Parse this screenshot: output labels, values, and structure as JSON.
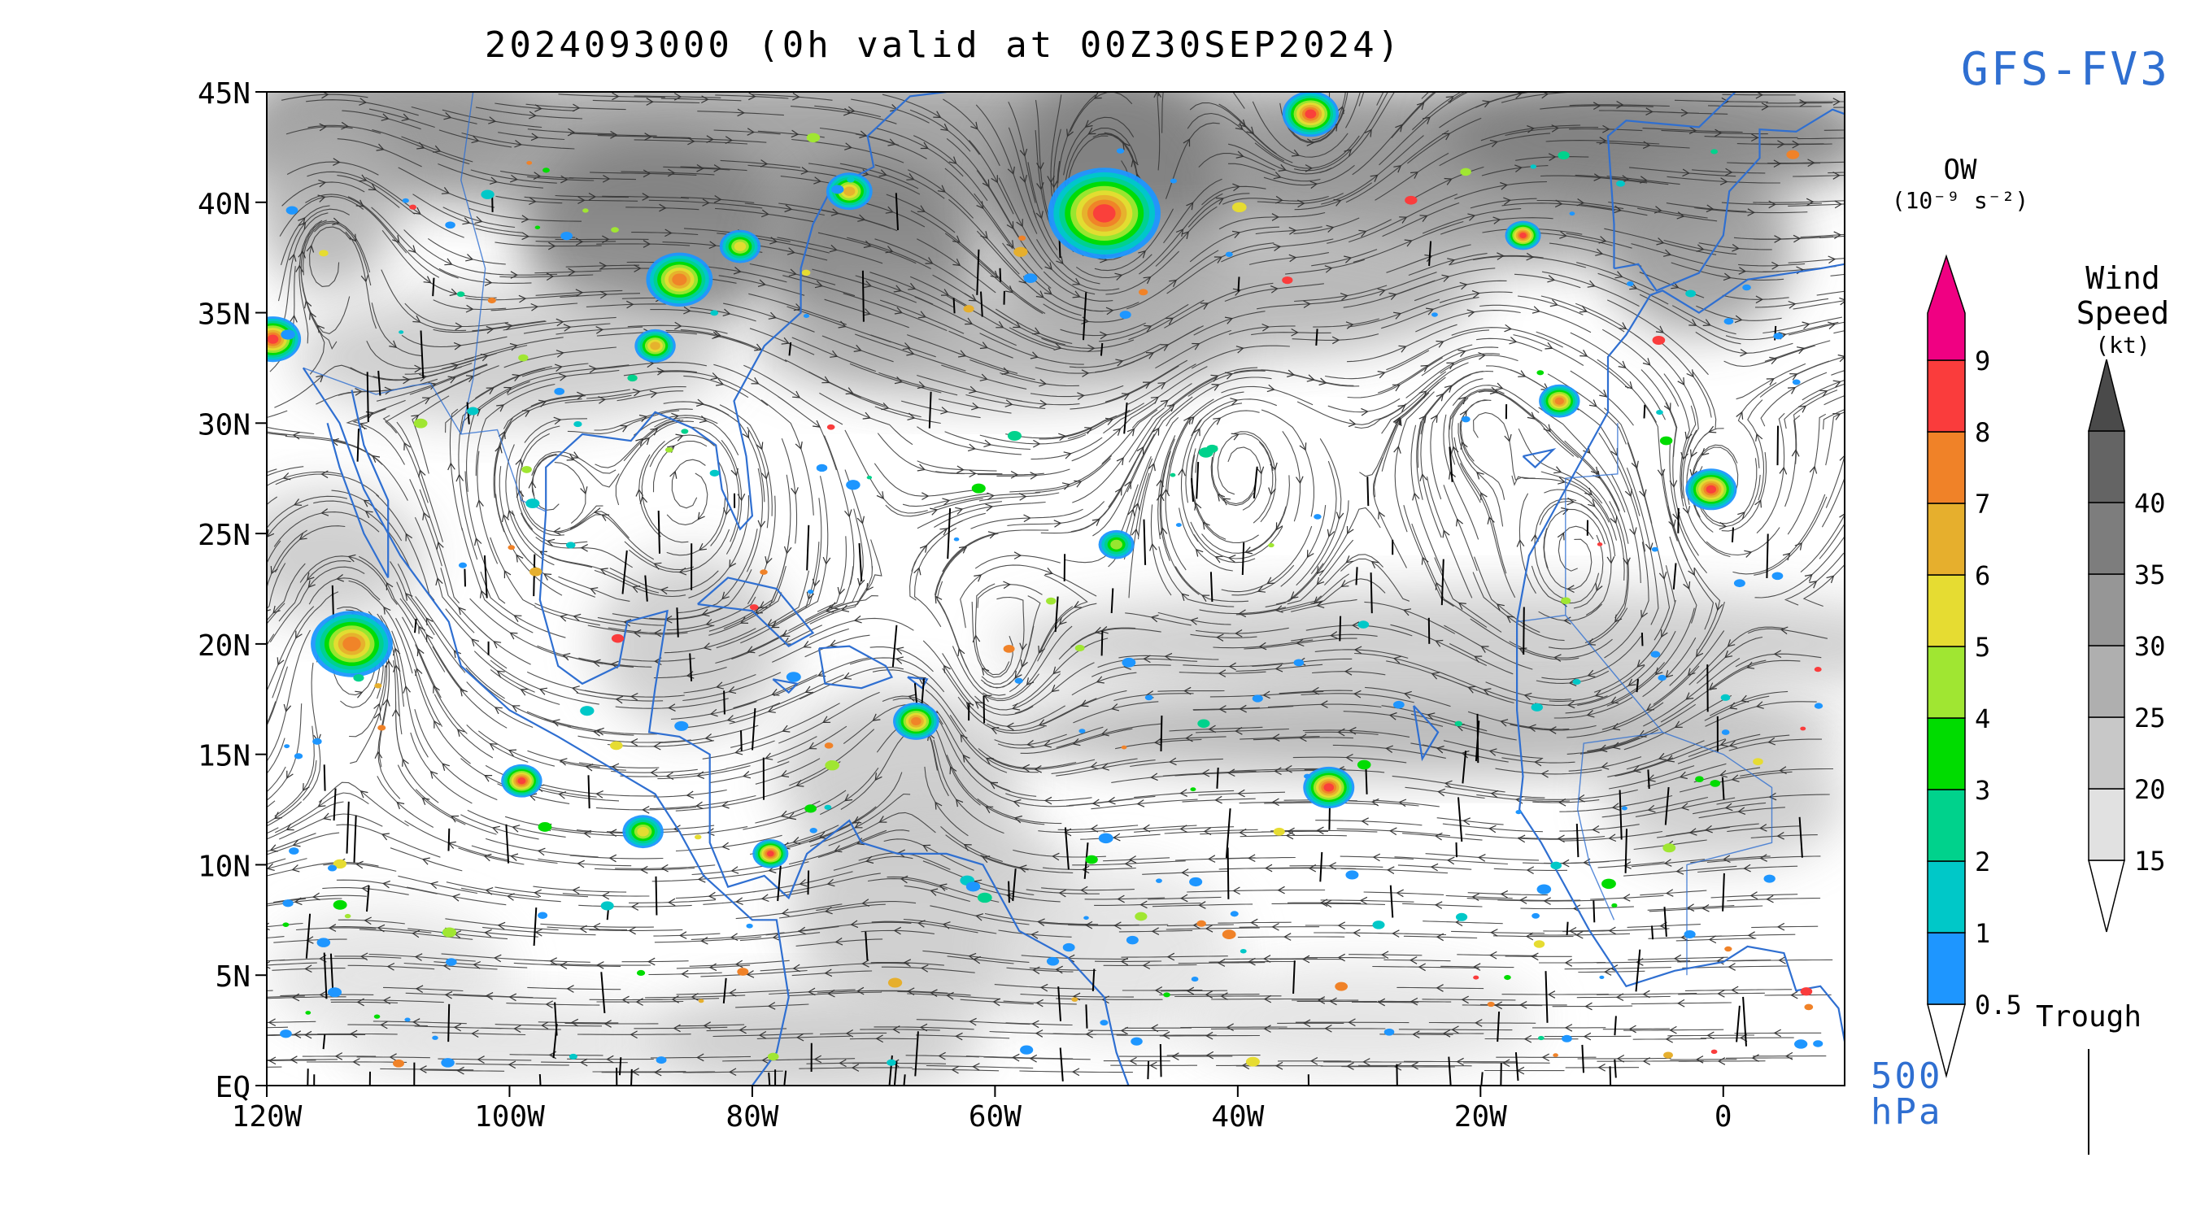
{
  "title": "2024093000 (0h valid at 00Z30SEP2024)",
  "model": "GFS-FV3",
  "level": {
    "value": "500",
    "unit": "hPa"
  },
  "map": {
    "lon_range": [
      -120,
      10
    ],
    "lat_range": [
      0,
      45
    ],
    "lat_ticks": [
      {
        "value": 45,
        "label": "45N"
      },
      {
        "value": 40,
        "label": "40N"
      },
      {
        "value": 35,
        "label": "35N"
      },
      {
        "value": 30,
        "label": "30N"
      },
      {
        "value": 25,
        "label": "25N"
      },
      {
        "value": 20,
        "label": "20N"
      },
      {
        "value": 15,
        "label": "15N"
      },
      {
        "value": 10,
        "label": "10N"
      },
      {
        "value": 5,
        "label": "5N"
      },
      {
        "value": 0,
        "label": "EQ"
      }
    ],
    "lon_ticks": [
      {
        "value": -120,
        "label": "120W"
      },
      {
        "value": -100,
        "label": "100W"
      },
      {
        "value": -80,
        "label": "80W"
      },
      {
        "value": -60,
        "label": "60W"
      },
      {
        "value": -40,
        "label": "40W"
      },
      {
        "value": -20,
        "label": "20W"
      },
      {
        "value": 0,
        "label": "0"
      }
    ],
    "coast_color": "#2f6fd1",
    "streamline_color": "#333333",
    "trough_color": "#000000"
  },
  "ow_legend": {
    "title": "OW",
    "unit_label": "(10⁻⁹ s⁻²)",
    "bins": [
      {
        "label": "0.5",
        "color": "#1e96ff"
      },
      {
        "label": "1",
        "color": "#00c8c8"
      },
      {
        "label": "2",
        "color": "#00d28c"
      },
      {
        "label": "3",
        "color": "#00dc00"
      },
      {
        "label": "4",
        "color": "#a0e632"
      },
      {
        "label": "5",
        "color": "#e6dc32"
      },
      {
        "label": "6",
        "color": "#e6af2d"
      },
      {
        "label": "7",
        "color": "#f08228"
      },
      {
        "label": "8",
        "color": "#fa3c3c"
      },
      {
        "label": "9",
        "color": "#f00082"
      }
    ]
  },
  "wind_legend": {
    "title_line1": "Wind",
    "title_line2": "Speed",
    "unit_label": "(kt)",
    "bins": [
      {
        "label": "15",
        "color": "#e1e1e1"
      },
      {
        "label": "20",
        "color": "#c8c8c8"
      },
      {
        "label": "25",
        "color": "#afafaf"
      },
      {
        "label": "30",
        "color": "#969696"
      },
      {
        "label": "35",
        "color": "#7d7d7d"
      },
      {
        "label": "40",
        "color": "#646464"
      }
    ]
  },
  "trough_legend": {
    "label": "Trough"
  },
  "ow_features": [
    {
      "lon": -51,
      "lat": 39.5,
      "size": 2.2,
      "peak": 9
    },
    {
      "lon": -34,
      "lat": 44,
      "size": 1.1,
      "peak": 9
    },
    {
      "lon": -119.5,
      "lat": 33.8,
      "size": 1.1,
      "peak": 9
    },
    {
      "lon": -113,
      "lat": 20,
      "size": 1.6,
      "peak": 8
    },
    {
      "lon": -1,
      "lat": 27,
      "size": 1.0,
      "peak": 9
    },
    {
      "lon": -32.5,
      "lat": 13.5,
      "size": 1.0,
      "peak": 9
    },
    {
      "lon": -66.5,
      "lat": 16.5,
      "size": 0.9,
      "peak": 8
    },
    {
      "lon": -13.5,
      "lat": 31,
      "size": 0.8,
      "peak": 8
    },
    {
      "lon": -16.5,
      "lat": 38.5,
      "size": 0.7,
      "peak": 9
    },
    {
      "lon": -86,
      "lat": 36.5,
      "size": 1.3,
      "peak": 8
    },
    {
      "lon": -72,
      "lat": 40.5,
      "size": 0.9,
      "peak": 7
    },
    {
      "lon": -99,
      "lat": 13.8,
      "size": 0.8,
      "peak": 9
    },
    {
      "lon": -78.5,
      "lat": 10.5,
      "size": 0.7,
      "peak": 9
    },
    {
      "lon": -89,
      "lat": 11.5,
      "size": 0.8,
      "peak": 6
    },
    {
      "lon": -50,
      "lat": 24.5,
      "size": 0.7,
      "peak": 5
    },
    {
      "lon": -88,
      "lat": 33.5,
      "size": 0.8,
      "peak": 7
    },
    {
      "lon": -81,
      "lat": 38,
      "size": 0.8,
      "peak": 6
    }
  ]
}
